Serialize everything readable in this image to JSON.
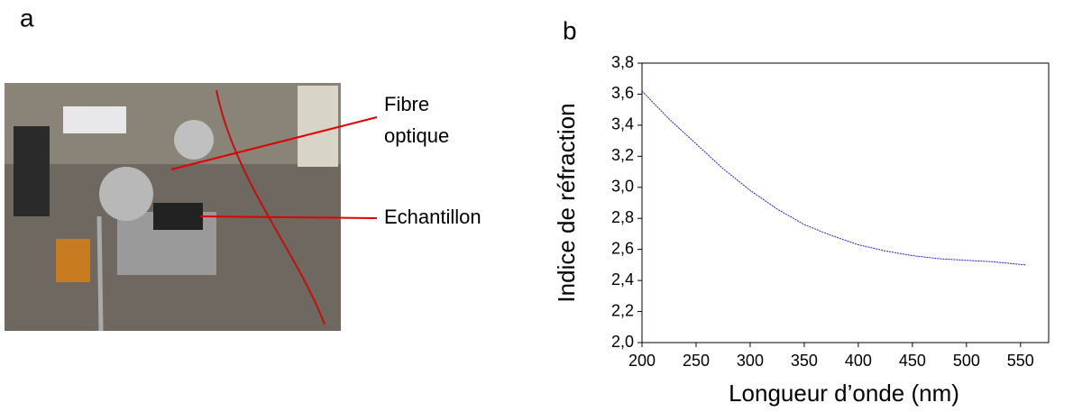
{
  "panel_a": {
    "label": "a",
    "annotations": [
      [
        "Fibre",
        "optique"
      ],
      [
        "Echantillon"
      ]
    ]
  },
  "chart_data": {
    "type": "line",
    "panel_label": "b",
    "x_label": "Longueur d’onde (nm)",
    "y_label": "Indice de réfraction",
    "x": [
      200,
      225,
      250,
      275,
      300,
      325,
      350,
      375,
      400,
      425,
      450,
      475,
      500,
      525,
      555
    ],
    "series": [
      {
        "color": "#2020c8",
        "values": [
          3.62,
          3.44,
          3.28,
          3.12,
          2.98,
          2.86,
          2.76,
          2.69,
          2.63,
          2.59,
          2.56,
          2.54,
          2.53,
          2.52,
          2.5
        ]
      }
    ],
    "xlim": [
      200,
      576
    ],
    "ylim": [
      2.0,
      3.8
    ],
    "xticks": [
      200,
      250,
      300,
      350,
      400,
      450,
      500,
      550
    ],
    "yticks": [
      {
        "value": 2.0,
        "label": "2,0"
      },
      {
        "value": 2.2,
        "label": "2,2"
      },
      {
        "value": 2.4,
        "label": "2,4"
      },
      {
        "value": 2.6,
        "label": "2,6"
      },
      {
        "value": 2.8,
        "label": "2,8"
      },
      {
        "value": 3.0,
        "label": "3,0"
      },
      {
        "value": 3.2,
        "label": "3,2"
      },
      {
        "value": 3.4,
        "label": "3,4"
      },
      {
        "value": 3.6,
        "label": "3,6"
      },
      {
        "value": 3.8,
        "label": "3,8"
      }
    ]
  }
}
